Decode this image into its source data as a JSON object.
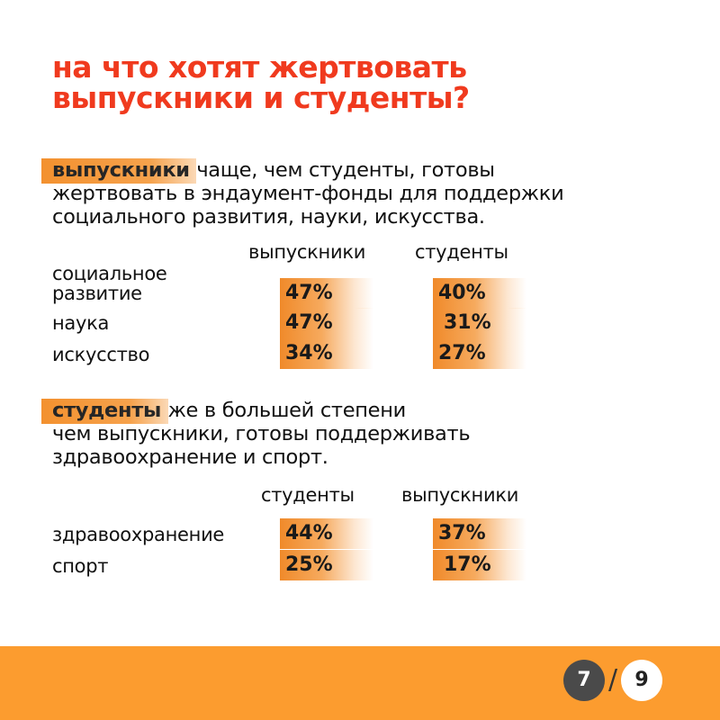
{
  "title": {
    "line1": "на что хотят жертвовать",
    "line2": "выпускники и студенты?"
  },
  "section1": {
    "highlight": "выпускники",
    "line1_rest": " чаще, чем студенты, готовы",
    "line2": "жертвовать в эндаумент-фонды для поддержки",
    "line3": "социального развития, науки, искусства.",
    "col1": "выпускники",
    "col2": "студенты",
    "rows": [
      {
        "label1": "социальное",
        "label2": "развитие",
        "v1": "47%",
        "v2": "40%"
      },
      {
        "label1": "наука",
        "v1": "47%",
        "v2": "31%"
      },
      {
        "label1": "искусство",
        "v1": "34%",
        "v2": "27%"
      }
    ]
  },
  "section2": {
    "highlight": "студенты",
    "line1_rest": " же в большей степени",
    "line2": "чем выпускники, готовы поддерживать",
    "line3": "здравоохранение и спорт.",
    "col1": "студенты",
    "col2": "выпускники",
    "rows": [
      {
        "label1": "здравоохранение",
        "v1": "44%",
        "v2": "37%"
      },
      {
        "label1": "спорт",
        "v1": "25%",
        "v2": "17%"
      }
    ]
  },
  "pagination": {
    "current": "7",
    "separator": "/",
    "total": "9"
  },
  "colors": {
    "title": "#f03a1e",
    "accent": "#f3912f",
    "footer": "#fc9c2f",
    "page_current_bg": "#4a4a4a"
  }
}
